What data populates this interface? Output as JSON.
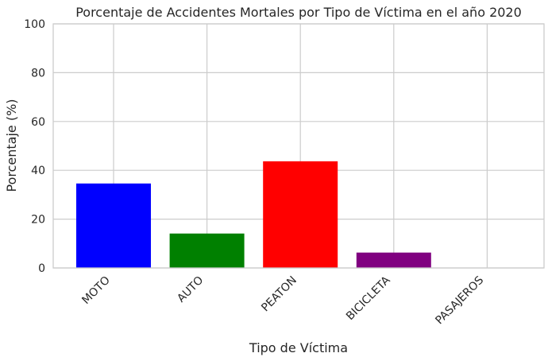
{
  "chart_data": {
    "type": "bar",
    "title": "Porcentaje de Accidentes Mortales por Tipo de Víctima en el año 2020",
    "xlabel": "Tipo de Víctima",
    "ylabel": "Porcentaje (%)",
    "categories": [
      "MOTO",
      "AUTO",
      "PEATON",
      "BICICLETA",
      "PASAJEROS"
    ],
    "values": [
      34.6,
      14.1,
      43.7,
      6.3,
      0.0
    ],
    "colors": [
      "#0000ff",
      "#008000",
      "#ff0000",
      "#800080",
      "#00bfbf"
    ],
    "ylim": [
      0,
      100
    ],
    "yticks": [
      0,
      20,
      40,
      60,
      80,
      100
    ],
    "grid": true,
    "legend": "none"
  }
}
